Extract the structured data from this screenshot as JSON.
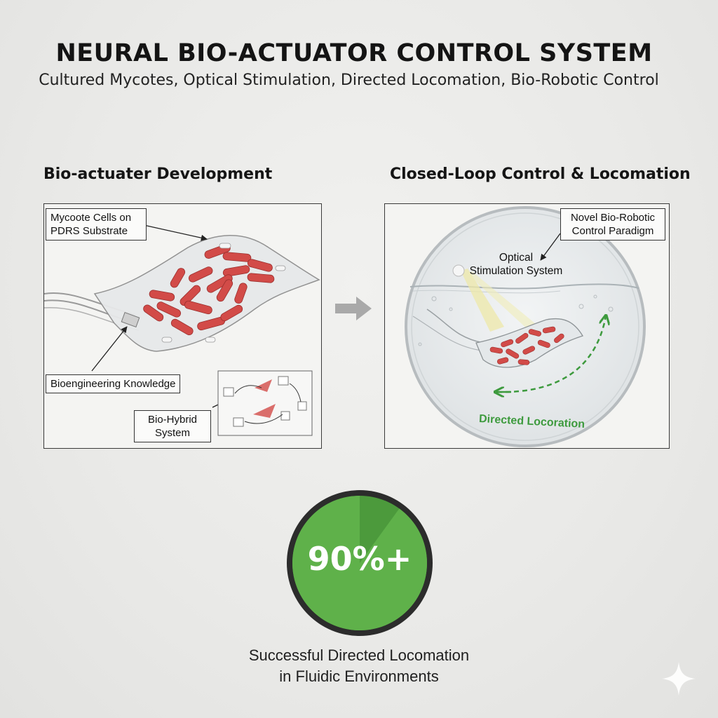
{
  "title": "NEURAL BIO-ACTUATOR CONTROL SYSTEM",
  "subtitle": "Cultured Mycotes, Optical Stimulation, Directed Locomation, Bio-Robotic Control",
  "left_panel": {
    "heading": "Bio-actuater Development",
    "callouts": {
      "cells": [
        "Mycoote Cells on",
        "PDRS Substrate"
      ],
      "knowledge": "Bioengineering Knowledge",
      "hybrid": [
        "Bio-Hybrid",
        "System"
      ]
    }
  },
  "right_panel": {
    "heading": "Closed-Loop Control & Locomation",
    "callouts": {
      "paradigm": [
        "Novel Bio-Robotic",
        "Control Paradigm"
      ],
      "optical": [
        "Optical",
        "Stimulation System"
      ],
      "locomotion": "Directed Locoration"
    }
  },
  "stat": {
    "value": "90%+",
    "fraction": 0.9,
    "caption": [
      "Successful Directed Locomation",
      "in Fluidic Environments"
    ],
    "colors": {
      "fill": "#5fb14a",
      "dark": "#4c9a3c",
      "ring": "#2c2c2c"
    }
  },
  "colors": {
    "cell": "#d9534f",
    "arrow_green": "#3d9a3d",
    "flow_arrow": "#a9a9a9"
  },
  "icons": [
    "flow-arrow-icon",
    "sparkle-icon"
  ]
}
